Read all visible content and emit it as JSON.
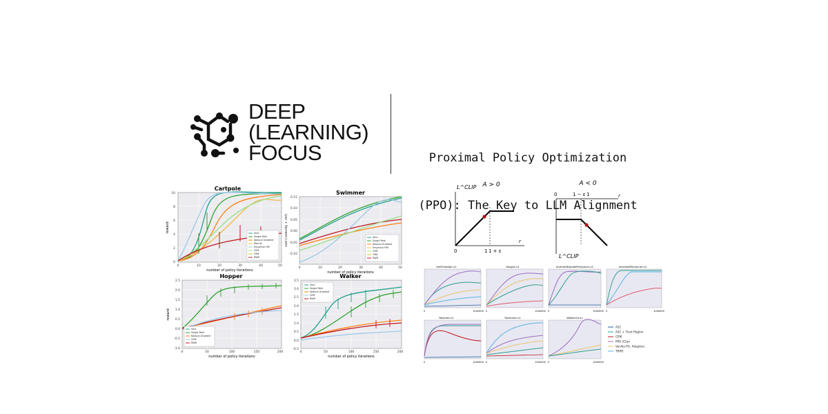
{
  "brand": {
    "line1": "DEEP",
    "line2": "(LEARNING)",
    "line3": "FOCUS"
  },
  "title": {
    "line1": "Proximal Policy Optimization",
    "line2": "(PPO): The Key to LLM Alignment"
  },
  "figures": {
    "trpo": {
      "cartpole": {
        "title": "Cartpole",
        "xlabel": "number of policy iterations",
        "ylabel": "reward",
        "xticks": [
          "0",
          "10",
          "20",
          "30",
          "40",
          "50"
        ],
        "yticks": [
          "0",
          "2",
          "4",
          "6",
          "8",
          "10"
        ],
        "legend": [
          "Vine",
          "Single Path",
          "Natural Gradient",
          "Max KL",
          "Empirical FIM",
          "CEM",
          "CMA",
          "RWR"
        ]
      },
      "swimmer": {
        "title": "Swimmer",
        "xlabel": "number of policy iterations",
        "ylabel": "cost (-velocity + ctrl)",
        "xticks": [
          "0",
          "10",
          "20",
          "30",
          "40",
          "50"
        ],
        "yticks": [
          "0.15",
          "0.10",
          "0.05",
          "0.00",
          "-0.05",
          "-0.10"
        ],
        "legend": [
          "Vine",
          "Single Path",
          "Natural Gradient",
          "Empirical FIM",
          "CEM",
          "CMA",
          "RWR"
        ]
      },
      "hopper": {
        "title": "Hopper",
        "xlabel": "number of policy iterations",
        "ylabel": "reward",
        "xticks": [
          "0",
          "50",
          "100",
          "150",
          "200"
        ],
        "yticks": [
          "2.5",
          "2.0",
          "1.5",
          "1.0",
          "0.5",
          "0.0",
          "-0.5",
          "-1.0"
        ],
        "legend": [
          "Vine",
          "Single Path",
          "Natural Gradient",
          "CEM",
          "RWR"
        ]
      },
      "walker": {
        "title": "Walker",
        "xlabel": "number of policy iterations",
        "xticks": [
          "0",
          "50",
          "100",
          "150",
          "200"
        ],
        "yticks": [
          "3.5",
          "3.0",
          "2.5",
          "2.0",
          "1.5",
          "1.0",
          "0.5",
          "0.0",
          "-0.5"
        ],
        "legend": [
          "Vine",
          "Single Path",
          "Natural Gradient",
          "CEM",
          "RWR"
        ]
      }
    },
    "clip": {
      "left": {
        "condition": "A > 0",
        "ylabel": "L^CLIP",
        "xlabel": "r",
        "ticks": [
          "0",
          "1",
          "1 + ε"
        ]
      },
      "right": {
        "condition": "A < 0",
        "ylabel": "L^CLIP",
        "xlabel": "r",
        "ticks": [
          "0",
          "1 − ε",
          "1"
        ]
      }
    },
    "mujoco": {
      "panels": [
        "HalfCheetah-v1",
        "Hopper-v1",
        "InvertedDoublePendulum-v1",
        "InvertedPendulum-v1",
        "Reacher-v1",
        "Swimmer-v1",
        "Walker2d-v1"
      ],
      "legend": [
        "A2C",
        "A2C + Trust Region",
        "CEM",
        "PPO (Clip)",
        "Vanilla PG, Adaptive",
        "TRPO"
      ],
      "xtick_start": "0",
      "xtick_end": "1000000"
    }
  }
}
